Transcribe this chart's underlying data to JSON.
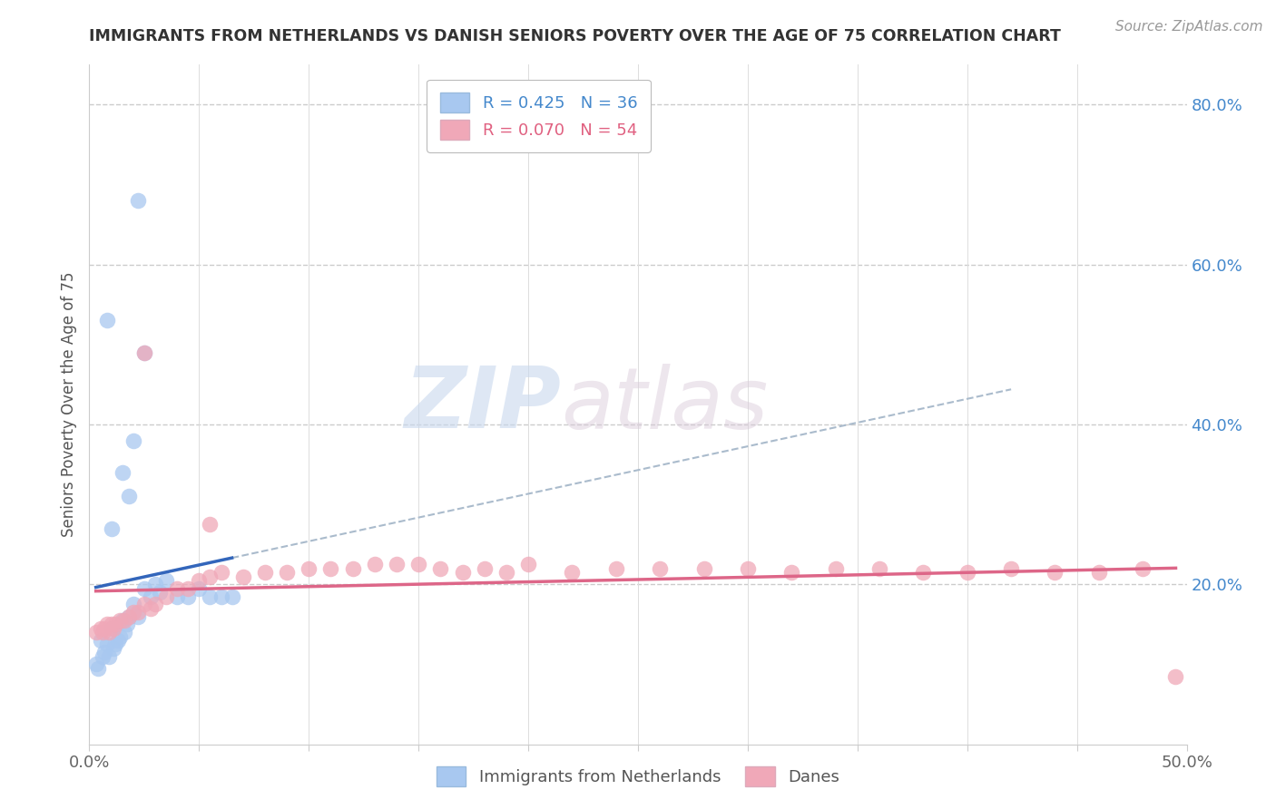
{
  "title": "IMMIGRANTS FROM NETHERLANDS VS DANISH SENIORS POVERTY OVER THE AGE OF 75 CORRELATION CHART",
  "source_text": "Source: ZipAtlas.com",
  "ylabel": "Seniors Poverty Over the Age of 75",
  "xlim": [
    0.0,
    0.5
  ],
  "ylim": [
    0.0,
    0.85
  ],
  "xticks": [
    0.0,
    0.05,
    0.1,
    0.15,
    0.2,
    0.25,
    0.3,
    0.35,
    0.4,
    0.45,
    0.5
  ],
  "xticklabels": [
    "0.0%",
    "",
    "",
    "",
    "",
    "",
    "",
    "",
    "",
    "",
    "50.0%"
  ],
  "yticks_right": [
    0.2,
    0.4,
    0.6,
    0.8
  ],
  "ytick_right_labels": [
    "20.0%",
    "40.0%",
    "60.0%",
    "80.0%"
  ],
  "background_color": "#ffffff",
  "grid_color": "#cccccc",
  "watermark_zip": "ZIP",
  "watermark_atlas": "atlas",
  "legend_R1": "R = 0.425",
  "legend_N1": "N = 36",
  "legend_R2": "R = 0.070",
  "legend_N2": "N = 54",
  "blue_color": "#a8c8f0",
  "blue_dark": "#4488cc",
  "pink_color": "#f0a8b8",
  "pink_dark": "#e06080",
  "trendline_blue_color": "#3366bb",
  "trendline_pink_color": "#dd6688",
  "trendline_dash_color": "#aabbcc",
  "blue_scatter_x": [
    0.003,
    0.004,
    0.005,
    0.006,
    0.007,
    0.008,
    0.009,
    0.01,
    0.011,
    0.012,
    0.013,
    0.014,
    0.015,
    0.016,
    0.017,
    0.018,
    0.02,
    0.022,
    0.025,
    0.028,
    0.03,
    0.032,
    0.035,
    0.04,
    0.045,
    0.05,
    0.055,
    0.06,
    0.065,
    0.01,
    0.015,
    0.02,
    0.025,
    0.008,
    0.018,
    0.022
  ],
  "blue_scatter_y": [
    0.1,
    0.095,
    0.13,
    0.11,
    0.115,
    0.125,
    0.11,
    0.145,
    0.12,
    0.125,
    0.13,
    0.135,
    0.155,
    0.14,
    0.15,
    0.16,
    0.175,
    0.16,
    0.195,
    0.185,
    0.2,
    0.19,
    0.205,
    0.185,
    0.185,
    0.195,
    0.185,
    0.185,
    0.185,
    0.27,
    0.34,
    0.38,
    0.49,
    0.53,
    0.31,
    0.68
  ],
  "pink_scatter_x": [
    0.003,
    0.005,
    0.006,
    0.007,
    0.008,
    0.009,
    0.01,
    0.011,
    0.012,
    0.014,
    0.016,
    0.018,
    0.02,
    0.022,
    0.025,
    0.028,
    0.03,
    0.035,
    0.04,
    0.045,
    0.05,
    0.055,
    0.06,
    0.07,
    0.08,
    0.09,
    0.1,
    0.11,
    0.12,
    0.13,
    0.14,
    0.15,
    0.16,
    0.17,
    0.18,
    0.19,
    0.2,
    0.22,
    0.24,
    0.26,
    0.28,
    0.3,
    0.32,
    0.34,
    0.36,
    0.38,
    0.4,
    0.42,
    0.44,
    0.46,
    0.48,
    0.495,
    0.025,
    0.055
  ],
  "pink_scatter_y": [
    0.14,
    0.145,
    0.14,
    0.145,
    0.15,
    0.14,
    0.15,
    0.145,
    0.15,
    0.155,
    0.155,
    0.16,
    0.165,
    0.165,
    0.175,
    0.17,
    0.175,
    0.185,
    0.195,
    0.195,
    0.205,
    0.21,
    0.215,
    0.21,
    0.215,
    0.215,
    0.22,
    0.22,
    0.22,
    0.225,
    0.225,
    0.225,
    0.22,
    0.215,
    0.22,
    0.215,
    0.225,
    0.215,
    0.22,
    0.22,
    0.22,
    0.22,
    0.215,
    0.22,
    0.22,
    0.215,
    0.215,
    0.22,
    0.215,
    0.215,
    0.22,
    0.085,
    0.49,
    0.275
  ]
}
